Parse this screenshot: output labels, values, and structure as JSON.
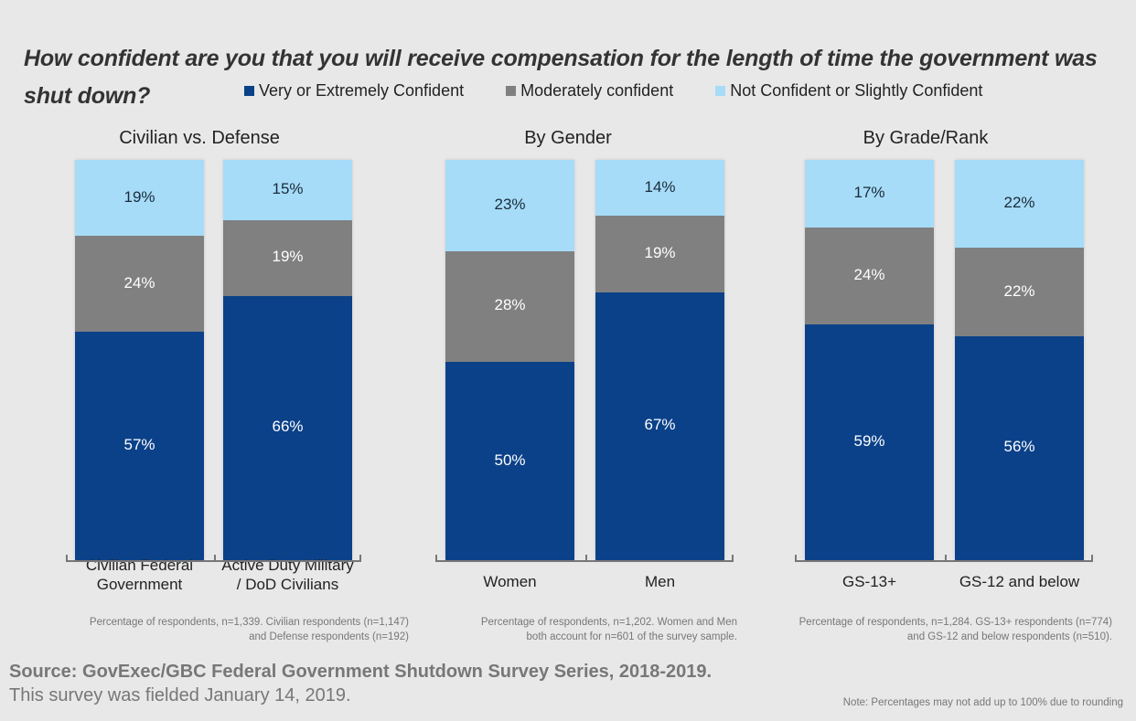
{
  "chart_data": {
    "type": "bar",
    "stacked": true,
    "title": "How confident are you that you will receive compensation for the length of time the government was shut down?",
    "legend": {
      "placement": "top",
      "entries": [
        {
          "name": "Very or Extremely Confident",
          "color": "#0b4189"
        },
        {
          "name": "Moderately confident",
          "color": "#808080"
        },
        {
          "name": "Not Confident or Slightly Confident",
          "color": "#a6dcf8"
        }
      ]
    },
    "ylim": [
      0,
      100
    ],
    "panels": [
      {
        "title": "Civilian vs. Defense",
        "categories": [
          "Civilian Federal Government",
          "Active Duty Military / DoD Civilians"
        ],
        "category_lines": [
          [
            "Civilian Federal",
            "Government"
          ],
          [
            "Active Duty Military",
            "/ DoD Civilians"
          ]
        ],
        "series": [
          {
            "name": "Very or Extremely Confident",
            "values": [
              57,
              66
            ]
          },
          {
            "name": "Moderately confident",
            "values": [
              24,
              19
            ]
          },
          {
            "name": "Not Confident or Slightly Confident",
            "values": [
              19,
              15
            ]
          }
        ],
        "footnote": [
          "Percentage of respondents, n=1,339. Civilian respondents (n=1,147)",
          "and Defense respondents (n=192)"
        ]
      },
      {
        "title": "By Gender",
        "categories": [
          "Women",
          "Men"
        ],
        "category_lines": [
          [
            "Women"
          ],
          [
            "Men"
          ]
        ],
        "series": [
          {
            "name": "Very or Extremely Confident",
            "values": [
              50,
              67
            ]
          },
          {
            "name": "Moderately confident",
            "values": [
              28,
              19
            ]
          },
          {
            "name": "Not Confident or Slightly Confident",
            "values": [
              23,
              14
            ]
          }
        ],
        "footnote": [
          "Percentage of respondents, n=1,202. Women and Men",
          "both account for n=601 of the survey sample."
        ]
      },
      {
        "title": "By Grade/Rank",
        "categories": [
          "GS-13+",
          "GS-12 and below"
        ],
        "category_lines": [
          [
            "GS-13+"
          ],
          [
            "GS-12 and below"
          ]
        ],
        "series": [
          {
            "name": "Very or Extremely Confident",
            "values": [
              59,
              56
            ]
          },
          {
            "name": "Moderately confident",
            "values": [
              24,
              22
            ]
          },
          {
            "name": "Not Confident or Slightly Confident",
            "values": [
              17,
              22
            ]
          }
        ],
        "footnote": [
          "Percentage of respondents, n=1,284. GS-13+ respondents (n=774)",
          "and GS-12 and below respondents (n=510)."
        ]
      }
    ]
  },
  "source": {
    "bold": "Source: GovExec/GBC Federal Government Shutdown Survey Series, 2018-2019.",
    "fielded": "This survey was fielded January 14, 2019."
  },
  "note": "Note: Percentages may not add up to 100% due to rounding"
}
